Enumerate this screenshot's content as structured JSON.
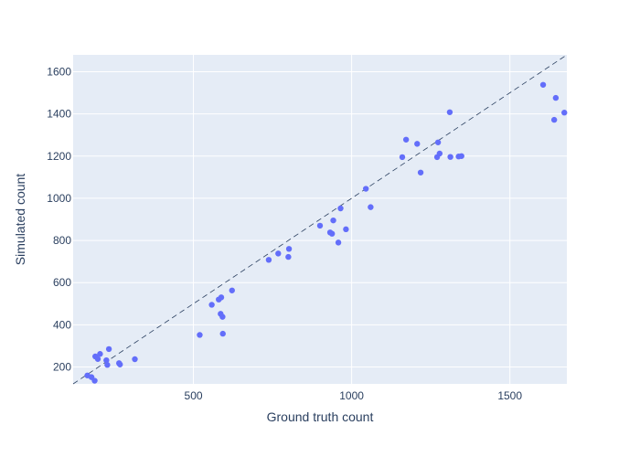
{
  "chart_data": {
    "type": "scatter",
    "xlabel": "Ground truth count",
    "ylabel": "Simulated count",
    "xlim": [
      120,
      1680
    ],
    "ylim": [
      120,
      1680
    ],
    "x_ticks": [
      500,
      1000,
      1500
    ],
    "y_ticks": [
      200,
      400,
      600,
      800,
      1000,
      1200,
      1400,
      1600
    ],
    "grid": true,
    "background": "#e5ecf6",
    "grid_color": "#ffffff",
    "marker_color": "#636efa",
    "reference_line": {
      "style": "dashed",
      "color": "#2a3f5f",
      "points": [
        [
          120,
          120
        ],
        [
          1680,
          1680
        ]
      ]
    },
    "points": [
      [
        165,
        160
      ],
      [
        178,
        152
      ],
      [
        188,
        135
      ],
      [
        190,
        250
      ],
      [
        198,
        238
      ],
      [
        205,
        262
      ],
      [
        225,
        232
      ],
      [
        228,
        210
      ],
      [
        233,
        285
      ],
      [
        265,
        218
      ],
      [
        268,
        212
      ],
      [
        315,
        237
      ],
      [
        520,
        352
      ],
      [
        558,
        495
      ],
      [
        580,
        520
      ],
      [
        586,
        452
      ],
      [
        588,
        530
      ],
      [
        592,
        438
      ],
      [
        593,
        358
      ],
      [
        622,
        563
      ],
      [
        738,
        708
      ],
      [
        768,
        738
      ],
      [
        800,
        722
      ],
      [
        802,
        760
      ],
      [
        900,
        870
      ],
      [
        932,
        838
      ],
      [
        938,
        832
      ],
      [
        942,
        895
      ],
      [
        958,
        790
      ],
      [
        965,
        952
      ],
      [
        982,
        853
      ],
      [
        1045,
        1045
      ],
      [
        1060,
        958
      ],
      [
        1160,
        1195
      ],
      [
        1172,
        1278
      ],
      [
        1207,
        1258
      ],
      [
        1218,
        1122
      ],
      [
        1270,
        1195
      ],
      [
        1273,
        1265
      ],
      [
        1278,
        1212
      ],
      [
        1310,
        1408
      ],
      [
        1312,
        1196
      ],
      [
        1338,
        1198
      ],
      [
        1347,
        1200
      ],
      [
        1605,
        1538
      ],
      [
        1640,
        1372
      ],
      [
        1645,
        1476
      ],
      [
        1672,
        1406
      ]
    ]
  }
}
